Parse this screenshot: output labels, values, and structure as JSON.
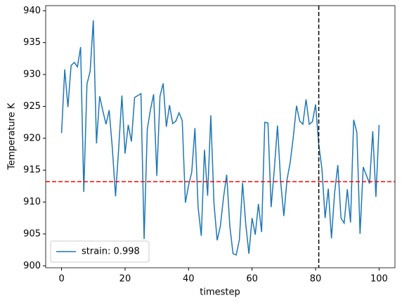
{
  "chart_data": {
    "type": "line",
    "xlabel": "timestep",
    "ylabel": "Temperature K",
    "x": [
      0,
      1,
      2,
      3,
      4,
      5,
      6,
      7,
      8,
      9,
      10,
      11,
      12,
      13,
      14,
      15,
      16,
      17,
      18,
      19,
      20,
      21,
      22,
      23,
      24,
      25,
      26,
      27,
      28,
      29,
      30,
      31,
      32,
      33,
      34,
      35,
      36,
      37,
      38,
      39,
      40,
      41,
      42,
      43,
      44,
      45,
      46,
      47,
      48,
      49,
      50,
      51,
      52,
      53,
      54,
      55,
      56,
      57,
      58,
      59,
      60,
      61,
      62,
      63,
      64,
      65,
      66,
      67,
      68,
      69,
      70,
      71,
      72,
      73,
      74,
      75,
      76,
      77,
      78,
      79,
      80,
      81,
      82,
      83,
      84,
      85,
      86,
      87,
      88,
      89,
      90,
      91,
      92,
      93,
      94,
      95,
      96,
      97,
      98,
      99,
      100
    ],
    "series": [
      {
        "name": "strain: 0.998",
        "color": "#1f77b4",
        "values": [
          920.8,
          930.8,
          924.9,
          931.4,
          931.9,
          931.2,
          934.3,
          911.6,
          928.5,
          930.5,
          938.5,
          919.2,
          926.6,
          924.3,
          922.2,
          924.4,
          918.4,
          910.9,
          918.5,
          926.7,
          917.6,
          922.1,
          919.5,
          926.4,
          926.7,
          927.0,
          904.2,
          921.4,
          924.5,
          926.9,
          914.1,
          926.6,
          928.6,
          921.8,
          925.2,
          922.3,
          922.7,
          924.0,
          922.8,
          909.9,
          912.6,
          914.7,
          921.6,
          909.2,
          904.7,
          918.2,
          911.0,
          923.6,
          909.8,
          904.0,
          906.2,
          910.7,
          914.3,
          906.2,
          901.9,
          901.7,
          904.1,
          913.0,
          906.6,
          901.9,
          907.5,
          904.9,
          909.7,
          905.3,
          922.5,
          922.4,
          909.2,
          915.1,
          922.0,
          913.2,
          907.8,
          913.5,
          916.2,
          920.3,
          925.1,
          922.7,
          922.2,
          926.1,
          922.2,
          922.6,
          925.3,
          919.0,
          915.2,
          907.5,
          912.1,
          904.3,
          911.5,
          915.8,
          907.5,
          906.7,
          912.0,
          906.8,
          922.9,
          920.9,
          905.0,
          915.5,
          914.2,
          912.9,
          921.1,
          910.8,
          922.1
        ]
      }
    ],
    "hline": 913.2,
    "hline_color": "#ff0000",
    "vline": 81,
    "vline_color": "#000000",
    "xlim": [
      -5,
      105
    ],
    "ylim": [
      899.7,
      940.8
    ],
    "xticks": [
      0,
      20,
      40,
      60,
      80,
      100
    ],
    "yticks": [
      900,
      905,
      910,
      915,
      920,
      925,
      930,
      935,
      940
    ],
    "legend": "lower left"
  }
}
